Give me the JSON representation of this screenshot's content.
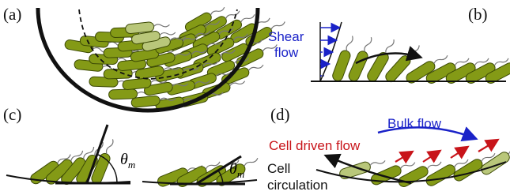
{
  "panels": [
    {
      "label": "(a)"
    },
    {
      "label": "(b)",
      "shear_label": [
        "Shear",
        "flow"
      ]
    },
    {
      "label": "(c)",
      "angle_labels": [
        {
          "symbol": "θ",
          "subscript": "m"
        },
        {
          "symbol": "θ",
          "subscript": "m"
        }
      ]
    },
    {
      "label": "(d)",
      "bulk_flow": "Bulk flow",
      "cell_driven_flow": "Cell driven flow",
      "cell_circulation": [
        "Cell",
        "circulation"
      ]
    }
  ]
}
